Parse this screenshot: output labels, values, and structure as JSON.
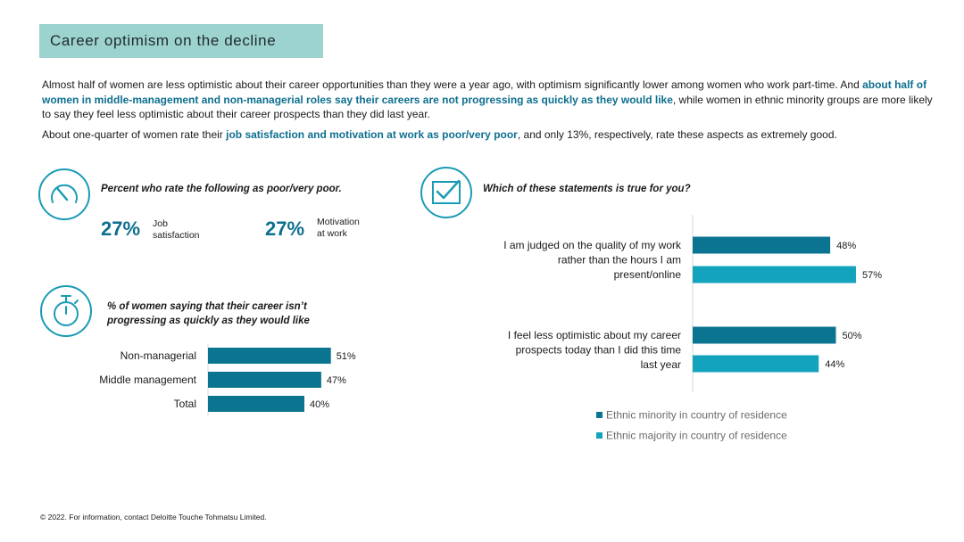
{
  "title": "Career optimism on the decline",
  "intro": {
    "p1_a": "Almost half of women are less optimistic about their career opportunities than they were a year ago, with optimism significantly lower among women who work part-time. And ",
    "p1_b": "about half of women in middle-management and non-managerial roles say their careers are not progressing as quickly as they would like",
    "p1_c": ", while women in ethnic minority groups are more likely to say they feel less optimistic about their career prospects than they did last year.",
    "p2_a": "About one-quarter of women rate their ",
    "p2_b": "job satisfaction and motivation at work as poor/very poor",
    "p2_c": ", and only 13%, respectively, rate these aspects as extremely good."
  },
  "colors": {
    "dark_teal": "#0b7591",
    "light_teal": "#13a3bd",
    "title_bg": "#9dd3cf",
    "icon": "#1a9bb5"
  },
  "icons": {
    "gauge": "gauge-icon",
    "stopwatch": "stopwatch-icon",
    "checkbox": "checkbox-icon"
  },
  "poor_rating": {
    "question": "Percent who rate the following as poor/very poor.",
    "items": [
      {
        "value": "27%",
        "label_line1": "Job",
        "label_line2": "satisfaction"
      },
      {
        "value": "27%",
        "label_line1": "Motivation",
        "label_line2": "at work"
      }
    ]
  },
  "chart_data": [
    {
      "type": "bar",
      "orientation": "horizontal",
      "title": "% of women saying that their career isn’t progressing as quickly as they would like",
      "title_line1": "% of women saying that their career isn’t",
      "title_line2": "progressing as quickly as they would like",
      "categories": [
        "Non-managerial",
        "Middle management",
        "Total"
      ],
      "values": [
        51,
        47,
        40
      ],
      "value_labels": [
        "51%",
        "47%",
        "40%"
      ],
      "xlim": [
        0,
        100
      ]
    },
    {
      "type": "bar",
      "orientation": "horizontal",
      "title": "Which of these statements is true for you?",
      "categories": [
        [
          "I am judged on the quality of my work",
          "rather than the hours I am",
          "present/online"
        ],
        [
          "I feel less optimistic about my career",
          "prospects today than I did this time",
          "last year"
        ]
      ],
      "series": [
        {
          "name": "Ethnic minority in country of residence",
          "values": [
            48,
            50
          ],
          "value_labels": [
            "48%",
            "50%"
          ]
        },
        {
          "name": "Ethnic majority in country of residence",
          "values": [
            57,
            44
          ],
          "value_labels": [
            "57%",
            "44%"
          ]
        }
      ],
      "legend": "bottom",
      "xlim": [
        0,
        100
      ]
    }
  ],
  "footer": "© 2022. For information, contact Deloitte Touche Tohmatsu Limited."
}
